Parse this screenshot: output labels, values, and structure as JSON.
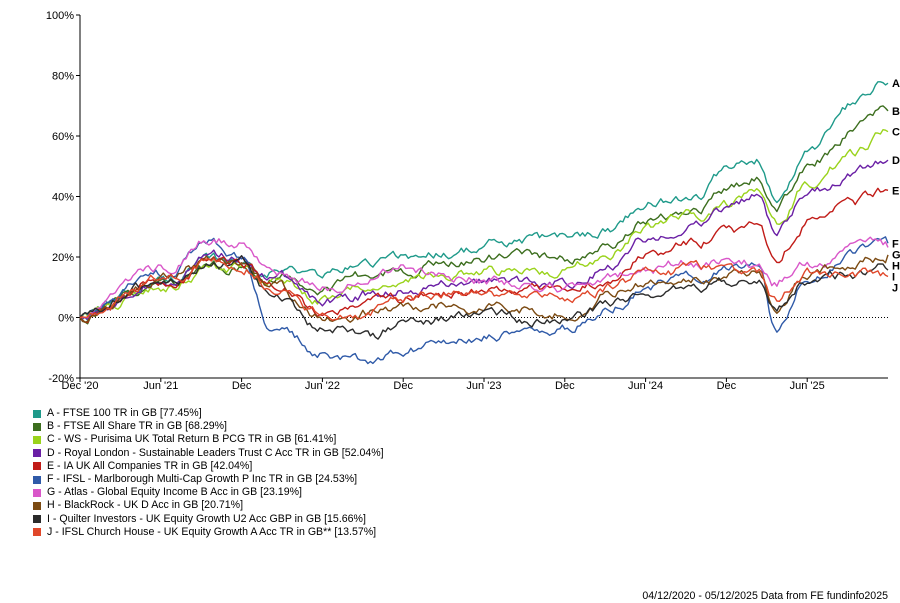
{
  "chart_data": {
    "type": "line",
    "yaxis": {
      "ticks": [
        "100%",
        "80%",
        "60%",
        "40%",
        "20%",
        "0%",
        "-20%"
      ],
      "tick_values": [
        100,
        80,
        60,
        40,
        20,
        0,
        -20
      ],
      "ylim": [
        -20,
        100
      ]
    },
    "xaxis": {
      "ticks": [
        "Dec '20",
        "Jun '21",
        "Dec",
        "Jun '22",
        "Dec",
        "Jun '23",
        "Dec",
        "Jun '24",
        "Dec",
        "Jun '25"
      ],
      "tick_positions": [
        0,
        0.5,
        1,
        1.5,
        2,
        2.5,
        3,
        3.5,
        4,
        4.5
      ],
      "xlim": [
        0,
        5
      ]
    },
    "grid": false,
    "zero_line": true,
    "series": [
      {
        "id": "A",
        "name": "A - FTSE 100 TR in GB [77.45%]",
        "color": "#1f9a8a",
        "end": 77.45,
        "x": [
          0,
          0.5,
          0.8,
          1,
          1.2,
          1.5,
          1.8,
          2,
          2.3,
          2.6,
          3,
          3.3,
          3.5,
          3.8,
          4,
          4.2,
          4.3,
          4.5,
          4.8,
          5
        ],
        "y": [
          0,
          12,
          18,
          18,
          16,
          14,
          18,
          20,
          22,
          24,
          26,
          30,
          38,
          40,
          48,
          52,
          40,
          55,
          70,
          77.45
        ]
      },
      {
        "id": "B",
        "name": "B - FTSE All Share TR in GB [68.29%]",
        "color": "#3c6e1e",
        "end": 68.29,
        "x": [
          0,
          0.5,
          0.8,
          1,
          1.2,
          1.5,
          1.8,
          2,
          2.3,
          2.6,
          3,
          3.3,
          3.5,
          3.8,
          4,
          4.2,
          4.3,
          4.5,
          4.8,
          5
        ],
        "y": [
          0,
          11,
          16,
          17,
          14,
          10,
          14,
          16,
          19,
          20,
          20,
          26,
          32,
          36,
          42,
          46,
          36,
          50,
          62,
          68.29
        ]
      },
      {
        "id": "C",
        "name": "C - WS - Purisima UK Total Return B PCG TR in GB [61.41%]",
        "color": "#9ad31c",
        "end": 61.41,
        "x": [
          0,
          0.5,
          0.8,
          1,
          1.2,
          1.5,
          1.8,
          2,
          2.3,
          2.6,
          3,
          3.3,
          3.5,
          3.8,
          4,
          4.2,
          4.3,
          4.5,
          4.8,
          5
        ],
        "y": [
          0,
          10,
          15,
          16,
          12,
          6,
          10,
          12,
          14,
          15,
          15,
          22,
          30,
          34,
          38,
          42,
          30,
          44,
          54,
          61.41
        ]
      },
      {
        "id": "D",
        "name": "D - Royal London - Sustainable Leaders Trust C Acc TR in GB [52.04%]",
        "color": "#6a1fa5",
        "end": 52.04,
        "x": [
          0,
          0.5,
          0.8,
          1,
          1.2,
          1.5,
          1.8,
          2,
          2.3,
          2.6,
          3,
          3.3,
          3.5,
          3.8,
          4,
          4.2,
          4.3,
          4.5,
          4.8,
          5
        ],
        "y": [
          0,
          12,
          20,
          20,
          14,
          6,
          8,
          10,
          12,
          12,
          12,
          18,
          26,
          32,
          36,
          40,
          30,
          40,
          48,
          52.04
        ]
      },
      {
        "id": "E",
        "name": "E - IA UK All Companies TR in GB [42.04%]",
        "color": "#c11b17",
        "end": 42.04,
        "x": [
          0,
          0.5,
          0.8,
          1,
          1.2,
          1.5,
          1.8,
          2,
          2.3,
          2.6,
          3,
          3.3,
          3.5,
          3.8,
          4,
          4.2,
          4.3,
          4.5,
          4.8,
          5
        ],
        "y": [
          0,
          11,
          17,
          19,
          12,
          2,
          4,
          6,
          8,
          9,
          8,
          14,
          20,
          24,
          28,
          30,
          20,
          32,
          38,
          42.04
        ]
      },
      {
        "id": "F",
        "name": "F - IFSL - Marlborough Multi-Cap Growth P Inc TR in GB [24.53%]",
        "color": "#2f5aa8",
        "end": 24.53,
        "x": [
          0,
          0.5,
          0.8,
          1,
          1.2,
          1.5,
          1.8,
          2,
          2.3,
          2.6,
          3,
          3.3,
          3.5,
          3.8,
          4,
          4.2,
          4.3,
          4.5,
          4.8,
          5
        ],
        "y": [
          0,
          14,
          24,
          20,
          -4,
          -12,
          -14,
          -10,
          -8,
          -6,
          -4,
          4,
          10,
          14,
          18,
          16,
          -5,
          12,
          22,
          24.53
        ]
      },
      {
        "id": "G",
        "name": "G - Atlas - Global Equity Income B Acc in GB [23.19%]",
        "color": "#d957c9",
        "end": 23.19,
        "x": [
          0,
          0.5,
          0.8,
          1,
          1.2,
          1.5,
          1.8,
          2,
          2.3,
          2.6,
          3,
          3.3,
          3.5,
          3.8,
          4,
          4.2,
          4.3,
          4.5,
          4.8,
          5
        ],
        "y": [
          0,
          16,
          26,
          24,
          16,
          10,
          14,
          16,
          14,
          12,
          10,
          14,
          16,
          18,
          18,
          18,
          12,
          18,
          22,
          23.19
        ]
      },
      {
        "id": "H",
        "name": "H - BlackRock - UK D Acc in GB [20.71%]",
        "color": "#7b4a12",
        "end": 20.71,
        "x": [
          0,
          0.5,
          0.8,
          1,
          1.2,
          1.5,
          1.8,
          2,
          2.3,
          2.6,
          3,
          3.3,
          3.5,
          3.8,
          4,
          4.2,
          4.3,
          4.5,
          4.8,
          5
        ],
        "y": [
          0,
          12,
          18,
          18,
          10,
          0,
          2,
          4,
          4,
          4,
          2,
          8,
          12,
          14,
          14,
          14,
          4,
          14,
          18,
          20.71
        ]
      },
      {
        "id": "I",
        "name": "I - Quilter Investors - UK Equity Growth U2 Acc GBP in GB [15.66%]",
        "color": "#2b2b2b",
        "end": 15.66,
        "x": [
          0,
          0.5,
          0.8,
          1,
          1.2,
          1.5,
          1.8,
          2,
          2.3,
          2.6,
          3,
          3.3,
          3.5,
          3.8,
          4,
          4.2,
          4.3,
          4.5,
          4.8,
          5
        ],
        "y": [
          0,
          11,
          17,
          18,
          6,
          -4,
          -6,
          -2,
          0,
          0,
          -2,
          4,
          8,
          10,
          12,
          12,
          4,
          12,
          14,
          15.66
        ]
      },
      {
        "id": "J",
        "name": "J - IFSL Church House - UK Equity Growth A Acc TR in GB** [13.57%]",
        "color": "#e0472a",
        "end": 13.57,
        "x": [
          0,
          0.5,
          0.8,
          1,
          1.2,
          1.5,
          1.8,
          2,
          2.3,
          2.6,
          3,
          3.3,
          3.5,
          3.8,
          4,
          4.2,
          4.3,
          4.5,
          4.8,
          5
        ],
        "y": [
          0,
          12,
          18,
          18,
          10,
          2,
          2,
          6,
          8,
          8,
          6,
          10,
          14,
          16,
          16,
          14,
          6,
          14,
          14,
          13.57
        ]
      }
    ]
  },
  "footer": "04/12/2020 - 05/12/2025 Data from FE fundinfo2025"
}
